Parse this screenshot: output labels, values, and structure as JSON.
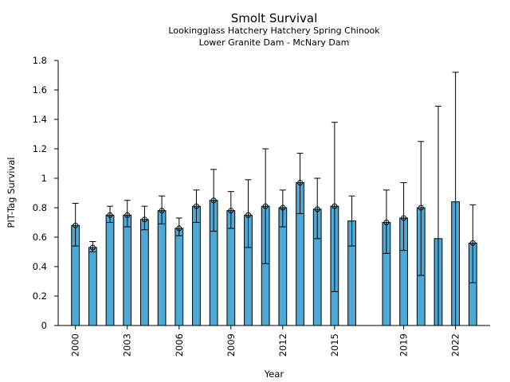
{
  "chart_data": {
    "type": "bar",
    "title": "Smolt Survival",
    "subtitle_lines": [
      "Lookingglass Hatchery Hatchery Spring Chinook",
      "Lower Granite Dam - McNary Dam"
    ],
    "xlabel": "Year",
    "ylabel": "PIT-Tag Survival",
    "xlim": [
      1999,
      2024
    ],
    "ylim": [
      0,
      1.8
    ],
    "y_ticks": [
      0,
      0.2,
      0.4,
      0.6,
      0.8,
      1,
      1.2,
      1.4,
      1.6,
      1.8
    ],
    "x_ticks": [
      2000,
      2003,
      2006,
      2009,
      2012,
      2015,
      2019,
      2022
    ],
    "grid": false,
    "bar_color": "#4ea8d5",
    "edge_color": "#000000",
    "bars": [
      {
        "year": 2000,
        "value": 0.68,
        "lower": 0.54,
        "upper": 0.83,
        "marker": true
      },
      {
        "year": 2001,
        "value": 0.53,
        "lower": 0.5,
        "upper": 0.57,
        "marker": true
      },
      {
        "year": 2002,
        "value": 0.75,
        "lower": 0.7,
        "upper": 0.81,
        "marker": true
      },
      {
        "year": 2003,
        "value": 0.75,
        "lower": 0.67,
        "upper": 0.85,
        "marker": true
      },
      {
        "year": 2004,
        "value": 0.72,
        "lower": 0.65,
        "upper": 0.81,
        "marker": true
      },
      {
        "year": 2005,
        "value": 0.78,
        "lower": 0.69,
        "upper": 0.88,
        "marker": true
      },
      {
        "year": 2006,
        "value": 0.66,
        "lower": 0.61,
        "upper": 0.73,
        "marker": true
      },
      {
        "year": 2007,
        "value": 0.81,
        "lower": 0.7,
        "upper": 0.92,
        "marker": true
      },
      {
        "year": 2008,
        "value": 0.85,
        "lower": 0.64,
        "upper": 1.06,
        "marker": true
      },
      {
        "year": 2009,
        "value": 0.78,
        "lower": 0.66,
        "upper": 0.91,
        "marker": true
      },
      {
        "year": 2010,
        "value": 0.75,
        "lower": 0.53,
        "upper": 0.99,
        "marker": true
      },
      {
        "year": 2011,
        "value": 0.81,
        "lower": 0.42,
        "upper": 1.2,
        "marker": true
      },
      {
        "year": 2012,
        "value": 0.8,
        "lower": 0.67,
        "upper": 0.92,
        "marker": true
      },
      {
        "year": 2013,
        "value": 0.97,
        "lower": 0.76,
        "upper": 1.17,
        "marker": true
      },
      {
        "year": 2014,
        "value": 0.79,
        "lower": 0.59,
        "upper": 1.0,
        "marker": true
      },
      {
        "year": 2015,
        "value": 0.81,
        "lower": 0.23,
        "upper": 1.38,
        "marker": true
      },
      {
        "year": 2016,
        "value": 0.71,
        "lower": 0.54,
        "upper": 0.88,
        "marker": false
      },
      {
        "year": 2018,
        "value": 0.7,
        "lower": 0.49,
        "upper": 0.92,
        "marker": true
      },
      {
        "year": 2019,
        "value": 0.73,
        "lower": 0.51,
        "upper": 0.97,
        "marker": true
      },
      {
        "year": 2020,
        "value": 0.8,
        "lower": 0.34,
        "upper": 1.25,
        "marker": true
      },
      {
        "year": 2021,
        "value": 0.59,
        "lower": 0.0,
        "upper": 1.49,
        "marker": false
      },
      {
        "year": 2022,
        "value": 0.84,
        "lower": 0.0,
        "upper": 1.72,
        "marker": false
      },
      {
        "year": 2023,
        "value": 0.56,
        "lower": 0.29,
        "upper": 0.82,
        "marker": true
      }
    ]
  }
}
